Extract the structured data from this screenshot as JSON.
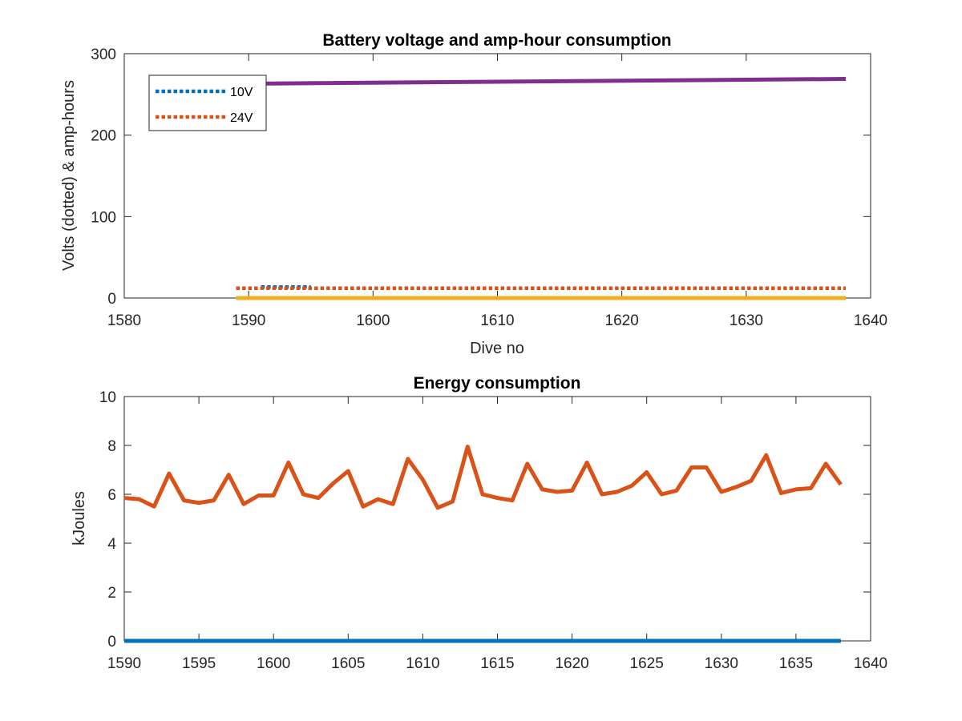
{
  "chart_data": [
    {
      "type": "line",
      "title": "Battery voltage and amp-hour consumption",
      "xlabel": "Dive no",
      "ylabel": "Volts (dotted) & amp-hours",
      "xlim": [
        1580,
        1640
      ],
      "ylim": [
        0,
        300
      ],
      "xticks": [
        1580,
        1590,
        1600,
        1610,
        1620,
        1630,
        1640
      ],
      "yticks": [
        0,
        100,
        200,
        300
      ],
      "grid": false,
      "legend_position": "top-left",
      "series": [
        {
          "name": "10V",
          "style": "dotted",
          "color": "#0072BD",
          "x": [
            1591,
            1595
          ],
          "y": [
            13.5,
            13.5
          ]
        },
        {
          "name": "24V",
          "style": "dotted",
          "color": "#D95319",
          "x": [
            1589,
            1638
          ],
          "y": [
            12,
            12
          ]
        },
        {
          "style": "solid",
          "color": "#EDB120",
          "x": [
            1589,
            1638
          ],
          "y": [
            0,
            0
          ]
        },
        {
          "style": "solid",
          "color": "#7E2F8E",
          "x": [
            1589,
            1638
          ],
          "y": [
            263,
            269
          ]
        }
      ]
    },
    {
      "type": "line",
      "title": "Energy consumption",
      "xlabel": "",
      "ylabel": "kJoules",
      "xlim": [
        1590,
        1640
      ],
      "ylim": [
        0,
        10
      ],
      "xticks": [
        1590,
        1595,
        1600,
        1605,
        1610,
        1615,
        1620,
        1625,
        1630,
        1635,
        1640
      ],
      "yticks": [
        0,
        2,
        4,
        6,
        8,
        10
      ],
      "grid": false,
      "series": [
        {
          "style": "solid",
          "color": "#0072BD",
          "x": [
            1590,
            1638
          ],
          "y": [
            0,
            0
          ]
        },
        {
          "style": "solid",
          "color": "#D95319",
          "x": [
            1590,
            1591,
            1592,
            1593,
            1594,
            1595,
            1596,
            1597,
            1598,
            1599,
            1600,
            1601,
            1602,
            1603,
            1604,
            1605,
            1606,
            1607,
            1608,
            1609,
            1610,
            1611,
            1612,
            1613,
            1614,
            1615,
            1616,
            1617,
            1618,
            1619,
            1620,
            1621,
            1622,
            1623,
            1624,
            1625,
            1626,
            1627,
            1628,
            1629,
            1630,
            1631,
            1632,
            1633,
            1634,
            1635,
            1636,
            1637,
            1638
          ],
          "y": [
            5.85,
            5.8,
            5.5,
            6.85,
            5.75,
            5.65,
            5.75,
            6.8,
            5.6,
            5.95,
            5.95,
            7.3,
            6.0,
            5.85,
            6.45,
            6.95,
            5.5,
            5.8,
            5.6,
            7.45,
            6.6,
            5.45,
            5.7,
            7.95,
            6.0,
            5.85,
            5.75,
            7.25,
            6.2,
            6.1,
            6.15,
            7.3,
            6.0,
            6.1,
            6.35,
            6.9,
            6.0,
            6.15,
            7.1,
            7.1,
            6.1,
            6.3,
            6.55,
            7.6,
            6.05,
            6.2,
            6.25,
            7.25,
            6.4
          ]
        }
      ]
    }
  ]
}
